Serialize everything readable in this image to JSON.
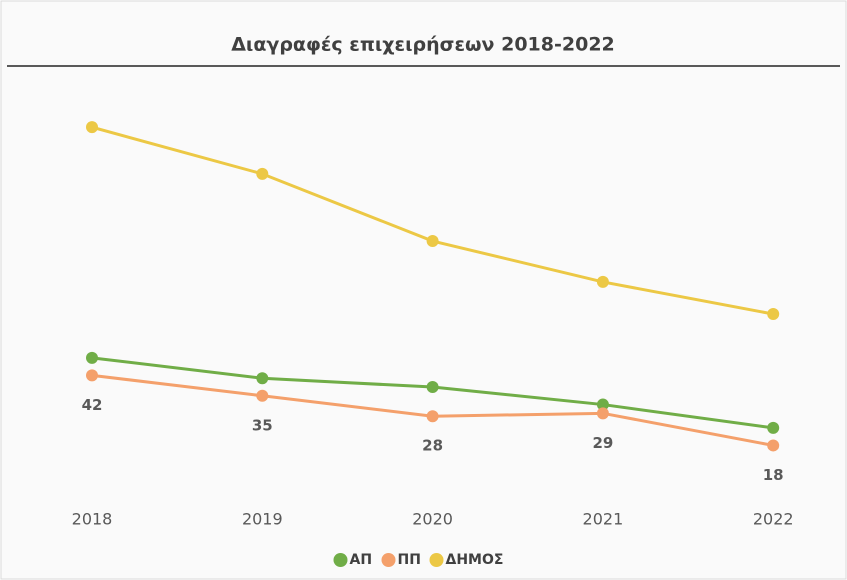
{
  "chart_data": {
    "type": "line",
    "title": "Διαγραφές επιχειρήσεων 2018-2022",
    "categories": [
      "2018",
      "2019",
      "2020",
      "2021",
      "2022"
    ],
    "series": [
      {
        "name": "ΑΠ",
        "color": "#70ad47",
        "values": [
          48,
          41,
          38,
          32,
          24
        ]
      },
      {
        "name": "ΠΠ",
        "color": "#f4a06b",
        "values": [
          42,
          35,
          28,
          29,
          18
        ]
      },
      {
        "name": "ΔΗΜΟΣ",
        "color": "#ecc845",
        "values": [
          127,
          111,
          88,
          74,
          63
        ]
      }
    ],
    "data_labels_series": "ΠΠ",
    "legend": "bottom"
  }
}
